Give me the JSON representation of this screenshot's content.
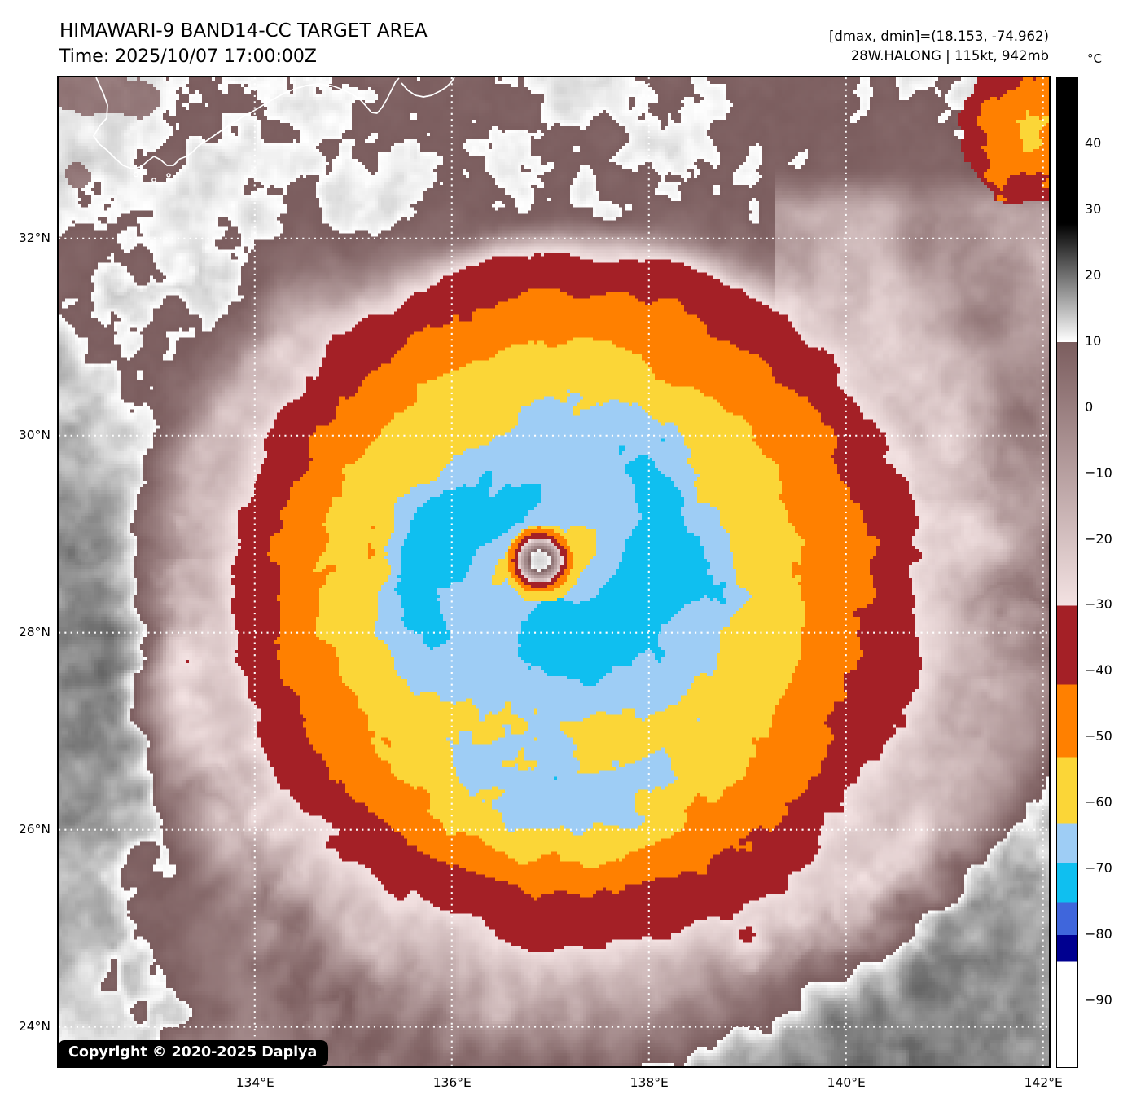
{
  "header": {
    "title": "HIMAWARI-9 BAND14-CC TARGET AREA",
    "time_line": "Time: 2025/10/07 17:00:00Z",
    "dmax_dmin_line": "[dmax, dmin]=(18.153, -74.962)",
    "storm_info_line": "28W.HALONG | 115kt, 942mb"
  },
  "map": {
    "copyright_badge": "Copyright © 2020-2025 Dapiya",
    "x_tick_labels": [
      "134°E",
      "136°E",
      "138°E",
      "140°E",
      "142°E"
    ],
    "x_tick_lons": [
      134,
      136,
      138,
      140,
      142
    ],
    "y_tick_labels": [
      "32°N",
      "30°N",
      "28°N",
      "26°N",
      "24°N"
    ],
    "y_tick_lats": [
      32,
      30,
      28,
      26,
      24
    ]
  },
  "colorbar": {
    "unit_label": "°C",
    "tick_labels": [
      "40",
      "30",
      "20",
      "10",
      "0",
      "−10",
      "−20",
      "−30",
      "−40",
      "−50",
      "−60",
      "−70",
      "−80",
      "−90"
    ],
    "tick_values": [
      40,
      30,
      20,
      10,
      0,
      -10,
      -20,
      -30,
      -40,
      -50,
      -60,
      -70,
      -80,
      -90
    ],
    "value_range": [
      50,
      -100
    ],
    "segments": [
      {
        "from": 50,
        "to": 28,
        "type": "solid",
        "color": "#000000"
      },
      {
        "from": 28,
        "to": 10,
        "type": "ramp",
        "color_start": "#000000",
        "color_end": "#ffffff"
      },
      {
        "from": 10,
        "to": -30,
        "type": "ramp",
        "color_start": "#7b5d5e",
        "color_end": "#f3e2e2"
      },
      {
        "from": -30,
        "to": -42,
        "type": "solid",
        "color": "#a42026"
      },
      {
        "from": -42,
        "to": -53,
        "type": "solid",
        "color": "#ff8000"
      },
      {
        "from": -53,
        "to": -63,
        "type": "solid",
        "color": "#fbd637"
      },
      {
        "from": -63,
        "to": -69,
        "type": "solid",
        "color": "#9ecdf5"
      },
      {
        "from": -69,
        "to": -75,
        "type": "solid",
        "color": "#0fbff0"
      },
      {
        "from": -75,
        "to": -80,
        "type": "solid",
        "color": "#3f66dc"
      },
      {
        "from": -80,
        "to": -84,
        "type": "solid",
        "color": "#000090"
      },
      {
        "from": -84,
        "to": -100,
        "type": "solid",
        "color": "#ffffff"
      }
    ]
  }
}
